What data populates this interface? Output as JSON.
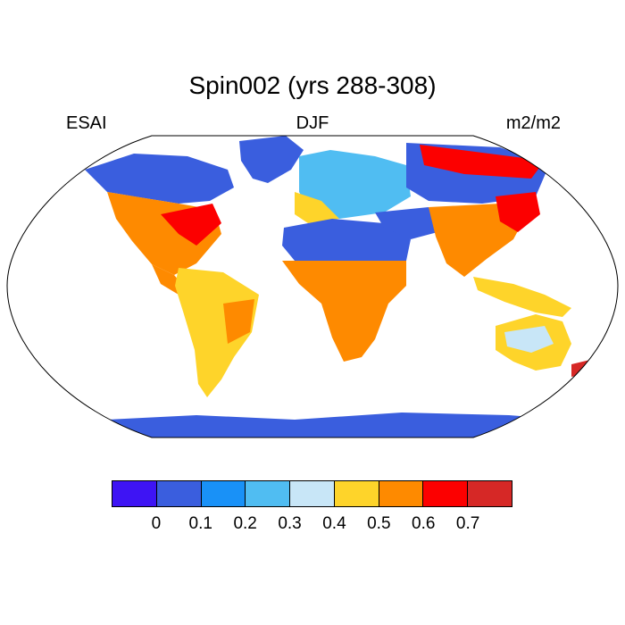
{
  "title": "Spin002 (yrs 288-308)",
  "left_label": "ESAI",
  "center_label": "DJF",
  "right_label": "m2/m2",
  "colorbar": {
    "colors": [
      "#3e14f4",
      "#3a5ede",
      "#1991f7",
      "#50bdf2",
      "#c8e6f7",
      "#fed42a",
      "#fe8a00",
      "#fc0000",
      "#d62826"
    ],
    "tick_labels": [
      "0",
      "0.1",
      "0.2",
      "0.3",
      "0.4",
      "0.5",
      "0.6",
      "0.7"
    ]
  },
  "colors": {
    "land_blue": "#3a5ede",
    "light_blue": "#50bdf2",
    "pale_blue": "#c8e6f7",
    "yellow": "#fed42a",
    "orange": "#fe8a00",
    "red": "#fc0000",
    "dark_red": "#d62826"
  }
}
